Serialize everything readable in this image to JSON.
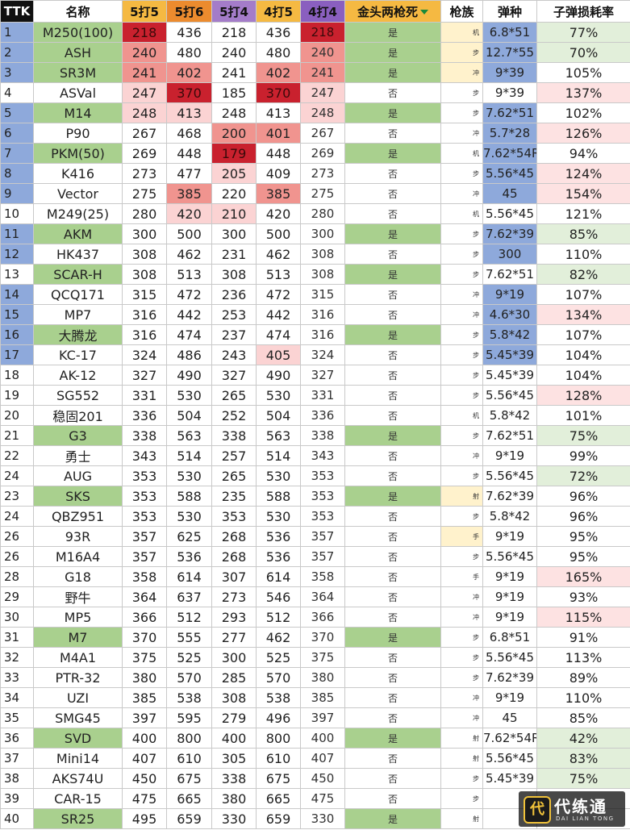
{
  "columns": [
    {
      "key": "ttk",
      "label": "TTK",
      "bg": "#111111",
      "fg": "#ffffff"
    },
    {
      "key": "name",
      "label": "名称",
      "bg": "#ffffff",
      "fg": "#111111"
    },
    {
      "key": "k5s5",
      "label": "5打5",
      "bg": "#f5b942",
      "fg": "#111111"
    },
    {
      "key": "k5s6",
      "label": "5打6",
      "bg": "#ec8b2e",
      "fg": "#111111"
    },
    {
      "key": "k5s4",
      "label": "5打4",
      "bg": "#a47cc9",
      "fg": "#111111"
    },
    {
      "key": "k4s5",
      "label": "4打5",
      "bg": "#f5b942",
      "fg": "#111111"
    },
    {
      "key": "k4s4",
      "label": "4打4",
      "bg": "#8a5fbf",
      "fg": "#111111"
    },
    {
      "key": "gold",
      "label": "金头两枪死",
      "bg": "#f5b942",
      "fg": "#111111"
    },
    {
      "key": "family",
      "label": "枪族",
      "bg": "#ffffff",
      "fg": "#111111"
    },
    {
      "key": "ammo",
      "label": "弹种",
      "bg": "#ffffff",
      "fg": "#111111"
    },
    {
      "key": "loss",
      "label": "子弹损耗率",
      "bg": "#ffffff",
      "fg": "#111111"
    }
  ],
  "colors": {
    "rank_blue": "#8ea9db",
    "green": "#a9d08e",
    "dark_red": "#c9212e",
    "mid_red": "#f0948f",
    "light_red": "#fbd3d3",
    "pink": "#fde2e2",
    "light_green": "#e2efda",
    "cream": "#fff2cc",
    "white": "#ffffff"
  },
  "rows": [
    {
      "cells": [
        "1",
        "M250(100)",
        "218",
        "436",
        "218",
        "436",
        "218",
        "是",
        "机",
        "6.8*51",
        "77%"
      ],
      "bg": [
        "rank_blue",
        "green",
        "dark_red",
        "",
        "",
        "",
        "dark_red",
        "green",
        "cream",
        "rank_blue",
        "light_green"
      ]
    },
    {
      "cells": [
        "2",
        "ASH",
        "240",
        "480",
        "240",
        "480",
        "240",
        "是",
        "步",
        "12.7*55",
        "70%"
      ],
      "bg": [
        "rank_blue",
        "green",
        "mid_red",
        "",
        "",
        "",
        "mid_red",
        "green",
        "cream",
        "rank_blue",
        "light_green"
      ]
    },
    {
      "cells": [
        "3",
        "SR3M",
        "241",
        "402",
        "241",
        "402",
        "241",
        "是",
        "冲",
        "9*39",
        "105%"
      ],
      "bg": [
        "rank_blue",
        "green",
        "mid_red",
        "mid_red",
        "",
        "mid_red",
        "mid_red",
        "green",
        "cream",
        "rank_blue",
        ""
      ]
    },
    {
      "cells": [
        "4",
        "ASVal",
        "247",
        "370",
        "185",
        "370",
        "247",
        "否",
        "步",
        "9*39",
        "137%"
      ],
      "bg": [
        "",
        "",
        "light_red",
        "dark_red",
        "",
        "dark_red",
        "light_red",
        "",
        "",
        "",
        "pink"
      ]
    },
    {
      "cells": [
        "5",
        "M14",
        "248",
        "413",
        "248",
        "413",
        "248",
        "是",
        "步",
        "7.62*51",
        "102%"
      ],
      "bg": [
        "rank_blue",
        "green",
        "light_red",
        "light_red",
        "",
        "",
        "light_red",
        "green",
        "",
        "rank_blue",
        ""
      ]
    },
    {
      "cells": [
        "6",
        "P90",
        "267",
        "468",
        "200",
        "401",
        "267",
        "否",
        "冲",
        "5.7*28",
        "126%"
      ],
      "bg": [
        "rank_blue",
        "",
        "",
        "",
        "mid_red",
        "mid_red",
        "",
        "",
        "",
        "rank_blue",
        "pink"
      ]
    },
    {
      "cells": [
        "7",
        "PKM(50)",
        "269",
        "448",
        "179",
        "448",
        "269",
        "是",
        "机",
        "7.62*54R",
        "94%"
      ],
      "bg": [
        "rank_blue",
        "green",
        "",
        "",
        "dark_red",
        "",
        "",
        "green",
        "",
        "rank_blue",
        ""
      ]
    },
    {
      "cells": [
        "8",
        "K416",
        "273",
        "477",
        "205",
        "409",
        "273",
        "否",
        "步",
        "5.56*45",
        "124%"
      ],
      "bg": [
        "rank_blue",
        "",
        "",
        "",
        "light_red",
        "",
        "",
        "",
        "",
        "rank_blue",
        "pink"
      ]
    },
    {
      "cells": [
        "9",
        "Vector",
        "275",
        "385",
        "220",
        "385",
        "275",
        "否",
        "冲",
        "45",
        "154%"
      ],
      "bg": [
        "rank_blue",
        "",
        "",
        "mid_red",
        "",
        "mid_red",
        "",
        "",
        "",
        "rank_blue",
        "pink"
      ]
    },
    {
      "cells": [
        "10",
        "M249(25)",
        "280",
        "420",
        "210",
        "420",
        "280",
        "否",
        "机",
        "5.56*45",
        "121%"
      ],
      "bg": [
        "",
        "",
        "",
        "light_red",
        "light_red",
        "",
        "",
        "",
        "",
        "",
        ""
      ]
    },
    {
      "cells": [
        "11",
        "AKM",
        "300",
        "500",
        "300",
        "500",
        "300",
        "是",
        "步",
        "7.62*39",
        "85%"
      ],
      "bg": [
        "rank_blue",
        "green",
        "",
        "",
        "",
        "",
        "",
        "green",
        "",
        "rank_blue",
        "light_green"
      ]
    },
    {
      "cells": [
        "12",
        "HK437",
        "308",
        "462",
        "231",
        "462",
        "308",
        "否",
        "步",
        "300",
        "110%"
      ],
      "bg": [
        "rank_blue",
        "",
        "",
        "",
        "",
        "",
        "",
        "",
        "",
        "rank_blue",
        ""
      ]
    },
    {
      "cells": [
        "13",
        "SCAR-H",
        "308",
        "513",
        "308",
        "513",
        "308",
        "是",
        "步",
        "7.62*51",
        "82%"
      ],
      "bg": [
        "",
        "green",
        "",
        "",
        "",
        "",
        "",
        "green",
        "",
        "",
        "light_green"
      ]
    },
    {
      "cells": [
        "14",
        "QCQ171",
        "315",
        "472",
        "236",
        "472",
        "315",
        "否",
        "冲",
        "9*19",
        "107%"
      ],
      "bg": [
        "rank_blue",
        "",
        "",
        "",
        "",
        "",
        "",
        "",
        "",
        "rank_blue",
        ""
      ]
    },
    {
      "cells": [
        "15",
        "MP7",
        "316",
        "442",
        "253",
        "442",
        "316",
        "否",
        "冲",
        "4.6*30",
        "134%"
      ],
      "bg": [
        "rank_blue",
        "",
        "",
        "",
        "",
        "",
        "",
        "",
        "",
        "rank_blue",
        "pink"
      ]
    },
    {
      "cells": [
        "16",
        "大腾龙",
        "316",
        "474",
        "237",
        "474",
        "316",
        "是",
        "步",
        "5.8*42",
        "107%"
      ],
      "bg": [
        "rank_blue",
        "green",
        "",
        "",
        "",
        "",
        "",
        "green",
        "",
        "rank_blue",
        ""
      ]
    },
    {
      "cells": [
        "17",
        "KC-17",
        "324",
        "486",
        "243",
        "405",
        "324",
        "否",
        "步",
        "5.45*39",
        "104%"
      ],
      "bg": [
        "rank_blue",
        "",
        "",
        "",
        "",
        "light_red",
        "",
        "",
        "",
        "rank_blue",
        ""
      ]
    },
    {
      "cells": [
        "18",
        "AK-12",
        "327",
        "490",
        "327",
        "490",
        "327",
        "否",
        "步",
        "5.45*39",
        "104%"
      ],
      "bg": [
        "",
        "",
        "",
        "",
        "",
        "",
        "",
        "",
        "",
        "",
        ""
      ]
    },
    {
      "cells": [
        "19",
        "SG552",
        "331",
        "530",
        "265",
        "530",
        "331",
        "否",
        "步",
        "5.56*45",
        "128%"
      ],
      "bg": [
        "",
        "",
        "",
        "",
        "",
        "",
        "",
        "",
        "",
        "",
        "pink"
      ]
    },
    {
      "cells": [
        "20",
        "稳固201",
        "336",
        "504",
        "252",
        "504",
        "336",
        "否",
        "机",
        "5.8*42",
        "101%"
      ],
      "bg": [
        "",
        "",
        "",
        "",
        "",
        "",
        "",
        "",
        "",
        "",
        ""
      ]
    },
    {
      "cells": [
        "21",
        "G3",
        "338",
        "563",
        "338",
        "563",
        "338",
        "是",
        "步",
        "7.62*51",
        "75%"
      ],
      "bg": [
        "",
        "green",
        "",
        "",
        "",
        "",
        "",
        "green",
        "",
        "",
        "light_green"
      ]
    },
    {
      "cells": [
        "22",
        "勇士",
        "343",
        "514",
        "257",
        "514",
        "343",
        "否",
        "冲",
        "9*19",
        "99%"
      ],
      "bg": [
        "",
        "",
        "",
        "",
        "",
        "",
        "",
        "",
        "",
        "",
        ""
      ]
    },
    {
      "cells": [
        "24",
        "AUG",
        "353",
        "530",
        "265",
        "530",
        "353",
        "否",
        "步",
        "5.56*45",
        "72%"
      ],
      "bg": [
        "",
        "",
        "",
        "",
        "",
        "",
        "",
        "",
        "",
        "",
        "light_green"
      ]
    },
    {
      "cells": [
        "23",
        "SKS",
        "353",
        "588",
        "235",
        "588",
        "353",
        "是",
        "射",
        "7.62*39",
        "96%"
      ],
      "bg": [
        "",
        "green",
        "",
        "",
        "",
        "",
        "",
        "green",
        "cream",
        "",
        ""
      ]
    },
    {
      "cells": [
        "24",
        "QBZ951",
        "353",
        "530",
        "353",
        "530",
        "353",
        "否",
        "步",
        "5.8*42",
        "96%"
      ],
      "bg": [
        "",
        "",
        "",
        "",
        "",
        "",
        "",
        "",
        "",
        "",
        ""
      ]
    },
    {
      "cells": [
        "26",
        "93R",
        "357",
        "625",
        "268",
        "536",
        "357",
        "否",
        "手",
        "9*19",
        "95%"
      ],
      "bg": [
        "",
        "",
        "",
        "",
        "",
        "",
        "",
        "",
        "cream",
        "",
        ""
      ]
    },
    {
      "cells": [
        "26",
        "M16A4",
        "357",
        "536",
        "268",
        "536",
        "357",
        "否",
        "步",
        "5.56*45",
        "95%"
      ],
      "bg": [
        "",
        "",
        "",
        "",
        "",
        "",
        "",
        "",
        "",
        "",
        ""
      ]
    },
    {
      "cells": [
        "28",
        "G18",
        "358",
        "614",
        "307",
        "614",
        "358",
        "否",
        "手",
        "9*19",
        "165%"
      ],
      "bg": [
        "",
        "",
        "",
        "",
        "",
        "",
        "",
        "",
        "",
        "",
        "pink"
      ]
    },
    {
      "cells": [
        "29",
        "野牛",
        "364",
        "637",
        "273",
        "546",
        "364",
        "否",
        "冲",
        "9*19",
        "93%"
      ],
      "bg": [
        "",
        "",
        "",
        "",
        "",
        "",
        "",
        "",
        "",
        "",
        ""
      ]
    },
    {
      "cells": [
        "30",
        "MP5",
        "366",
        "512",
        "293",
        "512",
        "366",
        "否",
        "冲",
        "9*19",
        "115%"
      ],
      "bg": [
        "",
        "",
        "",
        "",
        "",
        "",
        "",
        "",
        "",
        "",
        "pink"
      ]
    },
    {
      "cells": [
        "31",
        "M7",
        "370",
        "555",
        "277",
        "462",
        "370",
        "是",
        "步",
        "6.8*51",
        "91%"
      ],
      "bg": [
        "",
        "green",
        "",
        "",
        "",
        "",
        "",
        "green",
        "",
        "",
        ""
      ]
    },
    {
      "cells": [
        "32",
        "M4A1",
        "375",
        "525",
        "300",
        "525",
        "375",
        "否",
        "步",
        "5.56*45",
        "113%"
      ],
      "bg": [
        "",
        "",
        "",
        "",
        "",
        "",
        "",
        "",
        "",
        "",
        ""
      ]
    },
    {
      "cells": [
        "33",
        "PTR-32",
        "380",
        "570",
        "285",
        "570",
        "380",
        "否",
        "步",
        "7.62*39",
        "89%"
      ],
      "bg": [
        "",
        "",
        "",
        "",
        "",
        "",
        "",
        "",
        "",
        "",
        ""
      ]
    },
    {
      "cells": [
        "34",
        "UZI",
        "385",
        "538",
        "308",
        "538",
        "385",
        "否",
        "冲",
        "9*19",
        "110%"
      ],
      "bg": [
        "",
        "",
        "",
        "",
        "",
        "",
        "",
        "",
        "",
        "",
        ""
      ]
    },
    {
      "cells": [
        "35",
        "SMG45",
        "397",
        "595",
        "279",
        "496",
        "397",
        "否",
        "冲",
        "45",
        "85%"
      ],
      "bg": [
        "",
        "",
        "",
        "",
        "",
        "",
        "",
        "",
        "",
        "",
        ""
      ]
    },
    {
      "cells": [
        "36",
        "SVD",
        "400",
        "800",
        "400",
        "800",
        "400",
        "是",
        "射",
        "7.62*54R",
        "42%"
      ],
      "bg": [
        "",
        "green",
        "",
        "",
        "",
        "",
        "",
        "green",
        "",
        "",
        "light_green"
      ]
    },
    {
      "cells": [
        "37",
        "Mini14",
        "407",
        "610",
        "305",
        "610",
        "407",
        "否",
        "射",
        "5.56*45",
        "83%"
      ],
      "bg": [
        "",
        "",
        "",
        "",
        "",
        "",
        "",
        "",
        "",
        "",
        "light_green"
      ]
    },
    {
      "cells": [
        "38",
        "AKS74U",
        "450",
        "675",
        "338",
        "675",
        "450",
        "否",
        "步",
        "5.45*39",
        "75%"
      ],
      "bg": [
        "",
        "",
        "",
        "",
        "",
        "",
        "",
        "",
        "",
        "",
        "light_green"
      ]
    },
    {
      "cells": [
        "39",
        "CAR-15",
        "475",
        "665",
        "380",
        "665",
        "475",
        "否",
        "步",
        "",
        ""
      ],
      "bg": [
        "",
        "",
        "",
        "",
        "",
        "",
        "",
        "",
        "",
        "",
        ""
      ]
    },
    {
      "cells": [
        "40",
        "SR25",
        "495",
        "659",
        "330",
        "659",
        "330",
        "是",
        "射",
        "",
        ""
      ],
      "bg": [
        "",
        "green",
        "",
        "",
        "",
        "",
        "",
        "green",
        "",
        "",
        ""
      ]
    }
  ],
  "watermark": {
    "mark": "代",
    "name": "代练通",
    "sub": "DAI LIAN TONG"
  }
}
